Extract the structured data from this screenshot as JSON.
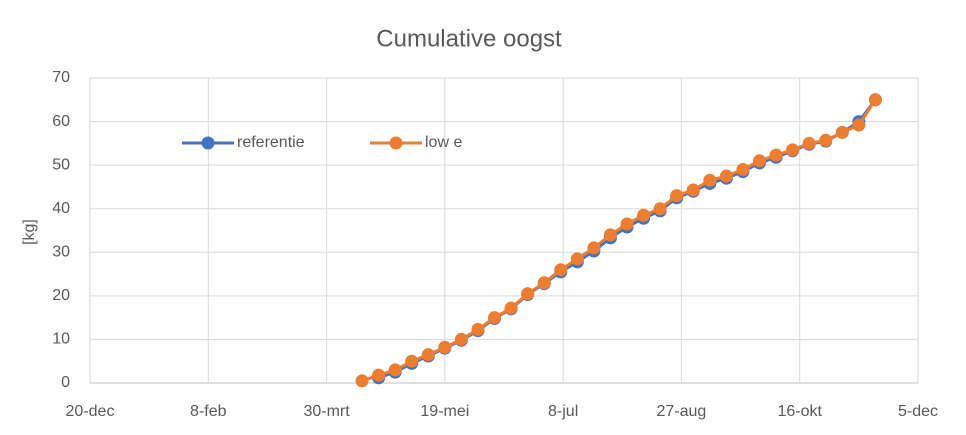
{
  "chart_data": {
    "type": "line",
    "title": "Cumulative oogst",
    "y_label": "[kg]",
    "x": [
      "14-apr",
      "21-apr",
      "28-apr",
      "5-mei",
      "12-mei",
      "19-mei",
      "26-mei",
      "2-jun",
      "9-jun",
      "16-jun",
      "23-jun",
      "30-jun",
      "7-jul",
      "14-jul",
      "21-jul",
      "28-jul",
      "4-aug",
      "11-aug",
      "18-aug",
      "25-aug",
      "1-sep",
      "8-sep",
      "15-sep",
      "22-sep",
      "29-sep",
      "6-okt",
      "13-okt",
      "20-okt",
      "27-okt",
      "3-nov",
      "10-nov",
      "17-nov"
    ],
    "series": [
      {
        "name": "referentie",
        "color": "#4472c4",
        "values": [
          null,
          1.2,
          2.5,
          4.5,
          6.2,
          8,
          9.8,
          12,
          14.8,
          17,
          20.3,
          22.8,
          25.5,
          27.8,
          30.3,
          33.3,
          35.8,
          37.8,
          39.5,
          42.5,
          44,
          45.8,
          47,
          48.5,
          50.5,
          51.8,
          53.3,
          54.8,
          55.5,
          57.5,
          60,
          65
        ]
      },
      {
        "name": "low e",
        "color": "#ed7d31",
        "values": [
          0.5,
          1.8,
          3,
          5,
          6.5,
          8.2,
          10,
          12.3,
          15,
          17.2,
          20.5,
          23,
          26,
          28.5,
          31,
          34,
          36.5,
          38.5,
          40,
          43,
          44.3,
          46.5,
          47.5,
          49,
          51,
          52.3,
          53.5,
          55,
          55.7,
          57.5,
          59.2,
          65
        ]
      }
    ],
    "xlim": [
      "20-dec",
      "5-dec"
    ],
    "xticks": [
      "20-dec",
      "8-feb",
      "30-mrt",
      "19-mei",
      "8-jul",
      "27-aug",
      "16-okt",
      "5-dec"
    ],
    "ylim": [
      0,
      70
    ],
    "yticks": [
      0,
      10,
      20,
      30,
      40,
      50,
      60,
      70
    ],
    "grid": true,
    "legend": "top-left"
  }
}
